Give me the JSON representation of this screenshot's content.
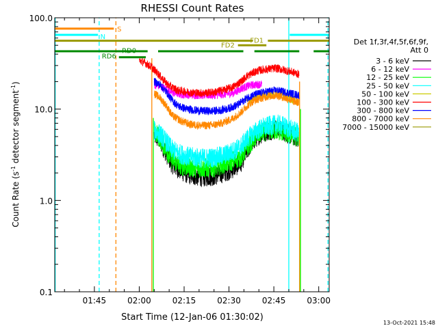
{
  "chart_data": {
    "type": "line",
    "title": "RHESSI Count Rates",
    "xlabel": "Start Time (12-Jan-06 01:30:02)",
    "ylabel_main": "Count Rate (s",
    "ylabel_sup1": "-1",
    "ylabel_mid": " detector segment",
    "ylabel_sup2": "-1",
    "ylabel_end": ")",
    "yscale": "log",
    "ylim": [
      0.1,
      100
    ],
    "xlim_minutes": [
      1.75,
      93.5
    ],
    "grid": false,
    "legend_position": "right",
    "x_ticks": [
      {
        "minute": 15,
        "label": "01:45"
      },
      {
        "minute": 30,
        "label": "02:00"
      },
      {
        "minute": 45,
        "label": "02:15"
      },
      {
        "minute": 60,
        "label": "02:30"
      },
      {
        "minute": 75,
        "label": "02:45"
      },
      {
        "minute": 90,
        "label": "03:00"
      }
    ],
    "y_ticks": [
      {
        "value": 0.1,
        "label": "0.1"
      },
      {
        "value": 1,
        "label": "1.0"
      },
      {
        "value": 10,
        "label": "10.0"
      },
      {
        "value": 100,
        "label": "100.0"
      }
    ],
    "legend_header": [
      "Det 1f,3f,4f,5f,6f,9f,",
      "Att 0"
    ],
    "series": [
      {
        "name": "3 - 6 keV",
        "color": "#000000",
        "points": [
          [
            35,
            5.2
          ],
          [
            37,
            4.5
          ],
          [
            39,
            3.3
          ],
          [
            41,
            2.5
          ],
          [
            44,
            2.1
          ],
          [
            47,
            1.9
          ],
          [
            51,
            1.8
          ],
          [
            55,
            1.85
          ],
          [
            58,
            2.0
          ],
          [
            61,
            2.2
          ],
          [
            64,
            2.6
          ],
          [
            66,
            3.5
          ],
          [
            68,
            4.5
          ],
          [
            70,
            5.2
          ],
          [
            73,
            5.8
          ],
          [
            76,
            6.0
          ],
          [
            78,
            5.8
          ],
          [
            80,
            5.3
          ],
          [
            82,
            5.0
          ],
          [
            83.2,
            4.8
          ]
        ]
      },
      {
        "name": "6 - 12 keV",
        "color": "#ff00ff",
        "points": [
          [
            35,
            18.5
          ],
          [
            37,
            17.8
          ],
          [
            39,
            16.5
          ],
          [
            41,
            15.2
          ],
          [
            44,
            14.5
          ],
          [
            48,
            14.3
          ],
          [
            52,
            14.2
          ],
          [
            56,
            14.3
          ],
          [
            59,
            14.6
          ],
          [
            61.5,
            15.0
          ],
          [
            64.5,
            17.0
          ],
          [
            67,
            18.2
          ],
          [
            69,
            18.5
          ],
          [
            71,
            18.8
          ]
        ]
      },
      {
        "name": "12 - 25 keV",
        "color": "#00ff00",
        "points": [
          [
            35,
            5.6
          ],
          [
            37,
            4.8
          ],
          [
            39,
            3.6
          ],
          [
            41,
            2.8
          ],
          [
            44,
            2.4
          ],
          [
            47,
            2.3
          ],
          [
            51,
            2.25
          ],
          [
            55,
            2.3
          ],
          [
            58,
            2.5
          ],
          [
            61,
            2.7
          ],
          [
            64,
            3.0
          ],
          [
            66,
            3.8
          ],
          [
            68,
            4.6
          ],
          [
            70,
            5.4
          ],
          [
            73,
            5.8
          ],
          [
            76,
            5.9
          ],
          [
            78,
            5.6
          ],
          [
            80,
            5.3
          ],
          [
            82,
            5.1
          ],
          [
            83.3,
            4.9
          ]
        ]
      },
      {
        "name": "25 - 50 keV",
        "color": "#00ffff",
        "points": [
          [
            35,
            5.8
          ],
          [
            37,
            5.3
          ],
          [
            39,
            4.4
          ],
          [
            41,
            3.6
          ],
          [
            44,
            3.2
          ],
          [
            47,
            3.0
          ],
          [
            51,
            2.9
          ],
          [
            55,
            2.95
          ],
          [
            58,
            3.1
          ],
          [
            61,
            3.4
          ],
          [
            64,
            3.9
          ],
          [
            66,
            4.7
          ],
          [
            68,
            5.4
          ],
          [
            70,
            6.0
          ],
          [
            73,
            6.5
          ],
          [
            76,
            6.8
          ],
          [
            78,
            6.6
          ],
          [
            80,
            6.1
          ],
          [
            82,
            5.7
          ],
          [
            83.3,
            5.5
          ]
        ]
      },
      {
        "name": "50 - 100 keV",
        "color": "#cccc00",
        "points": [
          [
            66,
            12.0
          ],
          [
            68,
            13.0
          ],
          [
            70,
            13.8
          ],
          [
            73,
            14.5
          ],
          [
            76,
            14.8
          ],
          [
            78,
            14.3
          ],
          [
            80,
            13.3
          ],
          [
            82,
            12.5
          ],
          [
            83.3,
            12.0
          ]
        ]
      },
      {
        "name": "100 - 300 keV",
        "color": "#ff0000",
        "points": [
          [
            30,
            34
          ],
          [
            32,
            32
          ],
          [
            34,
            29
          ],
          [
            36,
            25
          ],
          [
            38,
            21
          ],
          [
            40,
            18
          ],
          [
            43,
            16
          ],
          [
            47,
            15.2
          ],
          [
            51,
            15.0
          ],
          [
            55,
            15.3
          ],
          [
            58,
            16.2
          ],
          [
            61,
            17.2
          ],
          [
            64,
            20
          ],
          [
            66,
            23
          ],
          [
            68,
            25
          ],
          [
            70,
            26.5
          ],
          [
            73,
            27.5
          ],
          [
            76,
            28
          ],
          [
            78,
            27
          ],
          [
            80,
            26
          ],
          [
            82,
            25
          ],
          [
            83.4,
            24
          ]
        ]
      },
      {
        "name": "300 - 800 keV",
        "color": "#0000ff",
        "points": [
          [
            35,
            20
          ],
          [
            37,
            18.5
          ],
          [
            39,
            15.5
          ],
          [
            41,
            12.5
          ],
          [
            43,
            10.8
          ],
          [
            46,
            10.0
          ],
          [
            50,
            9.6
          ],
          [
            54,
            9.5
          ],
          [
            57,
            9.7
          ],
          [
            60,
            10.2
          ],
          [
            63,
            11.2
          ],
          [
            65,
            12.5
          ],
          [
            67,
            13.8
          ],
          [
            70,
            14.8
          ],
          [
            73,
            15.6
          ],
          [
            76,
            16.0
          ],
          [
            78,
            15.5
          ],
          [
            80,
            15.0
          ],
          [
            82,
            14.5
          ],
          [
            83.4,
            14.2
          ]
        ]
      },
      {
        "name": "800 - 7000 keV",
        "color": "#ff8800",
        "points": [
          [
            35,
            14.8
          ],
          [
            37,
            13.2
          ],
          [
            39,
            11.0
          ],
          [
            41,
            8.5
          ],
          [
            44,
            7.4
          ],
          [
            47,
            6.8
          ],
          [
            51,
            6.6
          ],
          [
            55,
            6.7
          ],
          [
            58,
            7.1
          ],
          [
            61,
            7.8
          ],
          [
            64,
            9.2
          ],
          [
            66,
            10.8
          ],
          [
            68,
            12.2
          ],
          [
            70,
            13.0
          ],
          [
            73,
            13.8
          ],
          [
            76,
            14.2
          ],
          [
            78,
            13.5
          ],
          [
            80,
            12.8
          ],
          [
            82,
            12.1
          ],
          [
            83.3,
            11.8
          ]
        ]
      },
      {
        "name": "7000 - 15000 keV",
        "color": "#999900",
        "points": []
      }
    ],
    "vlines": [
      {
        "minute": 1.9,
        "color": "#00ffff",
        "style": "solid",
        "y_top": 100
      },
      {
        "minute": 16.6,
        "color": "#00ffff",
        "style": "dashed",
        "y_top": 100
      },
      {
        "minute": 22.2,
        "color": "#ff8800",
        "style": "dashed",
        "y_top": 100
      },
      {
        "minute": 34.2,
        "color": "#ff8800",
        "style": "solid",
        "y_top": 36
      },
      {
        "minute": 34.7,
        "color": "#00ff00",
        "style": "solid",
        "y_top": 8
      },
      {
        "minute": 80.0,
        "color": "#00ffff",
        "style": "solid",
        "y_top": 100
      },
      {
        "minute": 83.6,
        "color": "#ff8800",
        "style": "solid",
        "y_top": 20
      },
      {
        "minute": 83.9,
        "color": "#00ff00",
        "style": "solid",
        "y_top": 10
      },
      {
        "minute": 93.1,
        "color": "#00ffff",
        "style": "dashed",
        "y_top": 100
      }
    ],
    "bars": [
      {
        "label": "S",
        "color": "#ff8800",
        "segments": [
          [
            1.8,
            21.5
          ]
        ],
        "y": 76,
        "label_minute": 22.6,
        "label_y": 76,
        "label_anchor": "start"
      },
      {
        "label": "N",
        "color": "#00ffff",
        "segments": [
          [
            1.8,
            16.2
          ],
          [
            80.3,
            93.4
          ]
        ],
        "y": 65,
        "label_minute": 17.0,
        "label_y": 63,
        "label_anchor": "start"
      },
      {
        "label": "FD1",
        "color": "#999900",
        "segments": [
          [
            1.8,
            68.0
          ],
          [
            73.0,
            93.4
          ]
        ],
        "y": 56,
        "label_minute": 69.3,
        "label_y": 57,
        "label_anchor": "middle"
      },
      {
        "label": "FD2",
        "color": "#999900",
        "segments": [
          [
            63.0,
            72.5
          ]
        ],
        "y": 50,
        "label_minute": 61.9,
        "label_y": 50.5,
        "label_anchor": "end"
      },
      {
        "label": "RD0",
        "color": "#008800",
        "segments": [
          [
            1.8,
            32.8
          ],
          [
            36.3,
            64.8
          ],
          [
            68.5,
            83.5
          ],
          [
            88.3,
            93.4
          ]
        ],
        "y": 43,
        "label_minute": 24.2,
        "label_y": 44,
        "label_anchor": "start"
      },
      {
        "label": "RD6",
        "color": "#008800",
        "segments": [
          [
            23.2,
            32.2
          ]
        ],
        "y": 37,
        "label_minute": 22.3,
        "label_y": 38.5,
        "label_anchor": "end"
      }
    ]
  },
  "footer_timestamp": "13-Oct-2021 15:48"
}
